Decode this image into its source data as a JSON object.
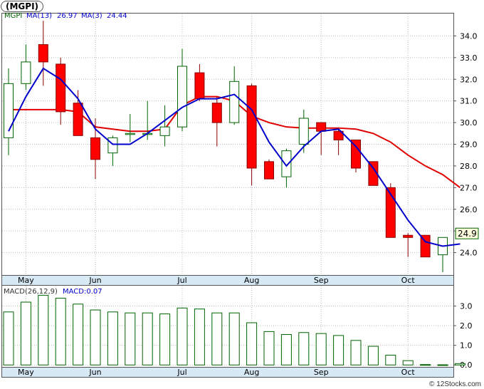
{
  "ticker": "(MGPI)",
  "watermark": "© 12Stocks.com",
  "colors": {
    "up_candle_fill": "#ffffff",
    "up_candle_stroke": "#006400",
    "down_candle_fill": "#ff0000",
    "down_candle_stroke": "#8b0000",
    "ma13": "#e00000",
    "ma3": "#0000cc",
    "axis_band": "#d6e9f5",
    "macd_bar": "#006400",
    "price_flag": "#006400",
    "price_flag_bg": "#ffffe0"
  },
  "price_legend": {
    "symbol": "MGPI",
    "ma13_label": "MA(13)",
    "ma13_value": "26.97",
    "ma3_label": "MA(3)",
    "ma3_value": "24.44"
  },
  "macd_legend": {
    "label": "MACD(26,12,9)",
    "value_label": "MACD:0.07"
  },
  "last_price_flag": "24.9",
  "chart_data": [
    {
      "type": "candlestick",
      "title": "(MGPI)",
      "x_tick_labels": [
        "May",
        "Jun",
        "Jul",
        "Aug",
        "Sep",
        "Oct"
      ],
      "x_tick_bar_index": [
        1,
        5,
        10,
        14,
        18,
        23
      ],
      "ylim": [
        23.0,
        35.0
      ],
      "y_ticks": [
        24.0,
        25.0,
        26.0,
        27.0,
        28.0,
        29.0,
        30.0,
        31.0,
        32.0,
        33.0,
        34.0
      ],
      "grid": true,
      "candles": [
        {
          "o": 29.3,
          "h": 32.5,
          "l": 28.5,
          "c": 31.8
        },
        {
          "o": 31.8,
          "h": 33.6,
          "l": 31.5,
          "c": 32.8
        },
        {
          "o": 33.6,
          "h": 34.7,
          "l": 31.7,
          "c": 32.8
        },
        {
          "o": 32.7,
          "h": 33.0,
          "l": 29.9,
          "c": 30.5
        },
        {
          "o": 30.9,
          "h": 31.5,
          "l": 29.4,
          "c": 29.4
        },
        {
          "o": 29.3,
          "h": 30.2,
          "l": 27.4,
          "c": 28.3
        },
        {
          "o": 28.6,
          "h": 29.4,
          "l": 28.0,
          "c": 29.3
        },
        {
          "o": 29.5,
          "h": 30.4,
          "l": 29.1,
          "c": 29.5
        },
        {
          "o": 29.5,
          "h": 31.0,
          "l": 29.2,
          "c": 29.5
        },
        {
          "o": 29.4,
          "h": 30.8,
          "l": 28.9,
          "c": 29.8
        },
        {
          "o": 29.8,
          "h": 33.4,
          "l": 29.6,
          "c": 32.6
        },
        {
          "o": 32.3,
          "h": 32.7,
          "l": 31.0,
          "c": 31.1
        },
        {
          "o": 30.9,
          "h": 31.2,
          "l": 28.9,
          "c": 30.0
        },
        {
          "o": 30.0,
          "h": 32.6,
          "l": 29.9,
          "c": 31.9
        },
        {
          "o": 31.7,
          "h": 31.8,
          "l": 27.1,
          "c": 27.9
        },
        {
          "o": 28.2,
          "h": 28.3,
          "l": 27.4,
          "c": 27.4
        },
        {
          "o": 27.5,
          "h": 28.8,
          "l": 27.0,
          "c": 28.7
        },
        {
          "o": 29.0,
          "h": 30.6,
          "l": 28.6,
          "c": 30.2
        },
        {
          "o": 30.0,
          "h": 30.0,
          "l": 28.5,
          "c": 29.6
        },
        {
          "o": 29.6,
          "h": 29.7,
          "l": 28.5,
          "c": 29.2
        },
        {
          "o": 29.2,
          "h": 29.2,
          "l": 27.7,
          "c": 27.9
        },
        {
          "o": 28.2,
          "h": 28.2,
          "l": 27.1,
          "c": 27.1
        },
        {
          "o": 27.0,
          "h": 27.2,
          "l": 24.7,
          "c": 24.7
        },
        {
          "o": 24.8,
          "h": 24.9,
          "l": 23.8,
          "c": 24.7
        },
        {
          "o": 24.8,
          "h": 24.8,
          "l": 23.8,
          "c": 23.8
        },
        {
          "o": 23.9,
          "h": 24.7,
          "l": 23.1,
          "c": 24.7
        },
        {
          "o": 24.8,
          "h": 25.0,
          "l": 24.7,
          "c": 24.9
        }
      ],
      "series": [
        {
          "name": "MA(13)",
          "points": [
            [
              0,
              30.6
            ],
            [
              3,
              30.6
            ],
            [
              4,
              30.5
            ],
            [
              5,
              29.8
            ],
            [
              6,
              29.7
            ],
            [
              7,
              29.6
            ],
            [
              8,
              29.6
            ],
            [
              9,
              29.7
            ],
            [
              10,
              30.8
            ],
            [
              11,
              31.2
            ],
            [
              12,
              31.2
            ],
            [
              13,
              31.0
            ],
            [
              14,
              30.3
            ],
            [
              15,
              30.0
            ],
            [
              16,
              29.8
            ],
            [
              17,
              29.75
            ],
            [
              18,
              29.75
            ],
            [
              19,
              29.75
            ],
            [
              20,
              29.7
            ],
            [
              21,
              29.5
            ],
            [
              22,
              29.1
            ],
            [
              23,
              28.5
            ],
            [
              24,
              28.0
            ],
            [
              25,
              27.6
            ],
            [
              26,
              27.0
            ]
          ]
        },
        {
          "name": "MA(3)",
          "points": [
            [
              0,
              29.6
            ],
            [
              1,
              31.2
            ],
            [
              2,
              32.5
            ],
            [
              3,
              32.0
            ],
            [
              4,
              31.1
            ],
            [
              5,
              29.7
            ],
            [
              6,
              29.0
            ],
            [
              7,
              29.0
            ],
            [
              8,
              29.5
            ],
            [
              9,
              30.1
            ],
            [
              10,
              30.7
            ],
            [
              11,
              31.1
            ],
            [
              12,
              31.1
            ],
            [
              13,
              31.3
            ],
            [
              14,
              30.6
            ],
            [
              15,
              29.1
            ],
            [
              16,
              28.0
            ],
            [
              17,
              28.9
            ],
            [
              18,
              29.6
            ],
            [
              19,
              29.7
            ],
            [
              20,
              28.9
            ],
            [
              21,
              27.9
            ],
            [
              22,
              26.7
            ],
            [
              23,
              25.5
            ],
            [
              24,
              24.5
            ],
            [
              25,
              24.3
            ],
            [
              26,
              24.4
            ]
          ]
        }
      ]
    },
    {
      "type": "bar",
      "title": "MACD(26,12,9)",
      "ylim": [
        -0.1,
        4.0
      ],
      "y_ticks": [
        0.0,
        1.0,
        2.0,
        3.0
      ],
      "x_tick_labels": [
        "May",
        "Jun",
        "Jul",
        "Aug",
        "Sep",
        "Oct"
      ],
      "x_tick_bar_index": [
        1,
        5,
        10,
        14,
        18,
        23
      ],
      "grid": true,
      "values": [
        2.7,
        3.2,
        3.55,
        3.4,
        3.1,
        2.8,
        2.7,
        2.65,
        2.65,
        2.6,
        2.9,
        2.85,
        2.65,
        2.65,
        2.15,
        1.7,
        1.55,
        1.65,
        1.6,
        1.5,
        1.25,
        0.95,
        0.5,
        0.22,
        0.02,
        0.01,
        0.07
      ]
    }
  ]
}
